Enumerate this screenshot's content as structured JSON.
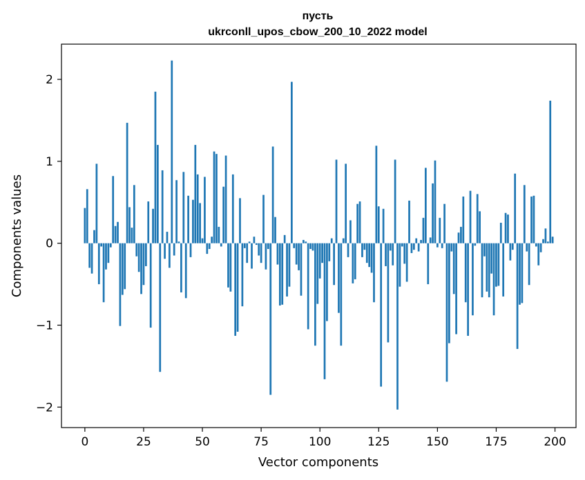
{
  "chart_data": {
    "type": "bar",
    "title_line1": "пусть",
    "title_line2": "ukrconll_upos_cbow_200_10_2022 model",
    "xlabel": "Vector components",
    "ylabel": "Components values",
    "xlim": [
      -9.95,
      208.95
    ],
    "ylim": [
      -2.25,
      2.43
    ],
    "xticks": [
      0,
      25,
      50,
      75,
      100,
      125,
      150,
      175,
      200
    ],
    "yticks": [
      -2,
      -1,
      0,
      1,
      2
    ],
    "ytick_labels": [
      "−2",
      "−1",
      "0",
      "1",
      "2"
    ],
    "bar_color": "#1f77b4",
    "grid": false,
    "values": [
      0.43,
      0.66,
      -0.3,
      -0.37,
      0.16,
      0.97,
      -0.5,
      -0.04,
      -0.72,
      -0.32,
      -0.24,
      -0.05,
      0.82,
      0.21,
      0.26,
      -1.01,
      -0.63,
      -0.56,
      1.47,
      0.44,
      0.19,
      0.71,
      -0.16,
      -0.35,
      -0.62,
      -0.51,
      -0.28,
      0.51,
      -1.03,
      0.42,
      1.85,
      1.2,
      -1.57,
      0.89,
      -0.19,
      0.14,
      -0.3,
      2.23,
      -0.15,
      0.77,
      0.02,
      -0.6,
      0.87,
      -0.67,
      0.58,
      -0.17,
      0.53,
      1.2,
      0.84,
      0.49,
      0.06,
      0.81,
      -0.13,
      -0.07,
      0.08,
      1.12,
      1.09,
      0.2,
      -0.04,
      0.69,
      1.07,
      -0.54,
      -0.59,
      0.84,
      -1.13,
      -1.08,
      0.55,
      -0.77,
      -0.06,
      -0.24,
      0.02,
      -0.31,
      0.08,
      -0.02,
      -0.15,
      -0.24,
      0.59,
      -0.32,
      -0.07,
      -1.85,
      1.18,
      0.32,
      -0.26,
      -0.76,
      -0.75,
      0.1,
      -0.65,
      -0.53,
      1.97,
      -0.06,
      -0.26,
      -0.33,
      -0.64,
      0.04,
      0.02,
      -1.05,
      -0.07,
      -0.09,
      -1.25,
      -0.74,
      -0.43,
      -0.24,
      -1.66,
      -0.95,
      -0.22,
      0.06,
      -0.51,
      1.02,
      -0.85,
      -1.25,
      0.06,
      0.97,
      -0.17,
      0.28,
      -0.49,
      -0.44,
      0.48,
      0.51,
      -0.17,
      -0.08,
      -0.24,
      -0.29,
      -0.36,
      -0.72,
      1.19,
      0.45,
      -1.75,
      0.42,
      -0.28,
      -1.21,
      -0.09,
      -0.27,
      1.02,
      -2.03,
      -0.53,
      -0.04,
      -0.25,
      -0.47,
      0.52,
      -0.12,
      -0.08,
      0.06,
      -0.1,
      0.04,
      0.31,
      0.92,
      -0.5,
      0.07,
      0.73,
      1.01,
      -0.05,
      0.31,
      -0.06,
      0.48,
      -1.69,
      -1.22,
      -0.1,
      -0.62,
      -1.11,
      0.13,
      0.2,
      0.57,
      -0.72,
      -1.13,
      0.64,
      -0.88,
      -0.03,
      0.6,
      0.39,
      -0.66,
      -0.16,
      -0.59,
      -0.66,
      -0.37,
      -0.88,
      -0.53,
      -0.52,
      0.25,
      -0.65,
      0.37,
      0.35,
      -0.21,
      -0.08,
      0.85,
      -1.29,
      -0.75,
      -0.73,
      0.71,
      -0.1,
      -0.51,
      0.57,
      0.58,
      -0.04,
      -0.27,
      -0.11,
      0.05,
      0.18,
      0.02,
      1.74,
      0.08
    ]
  }
}
